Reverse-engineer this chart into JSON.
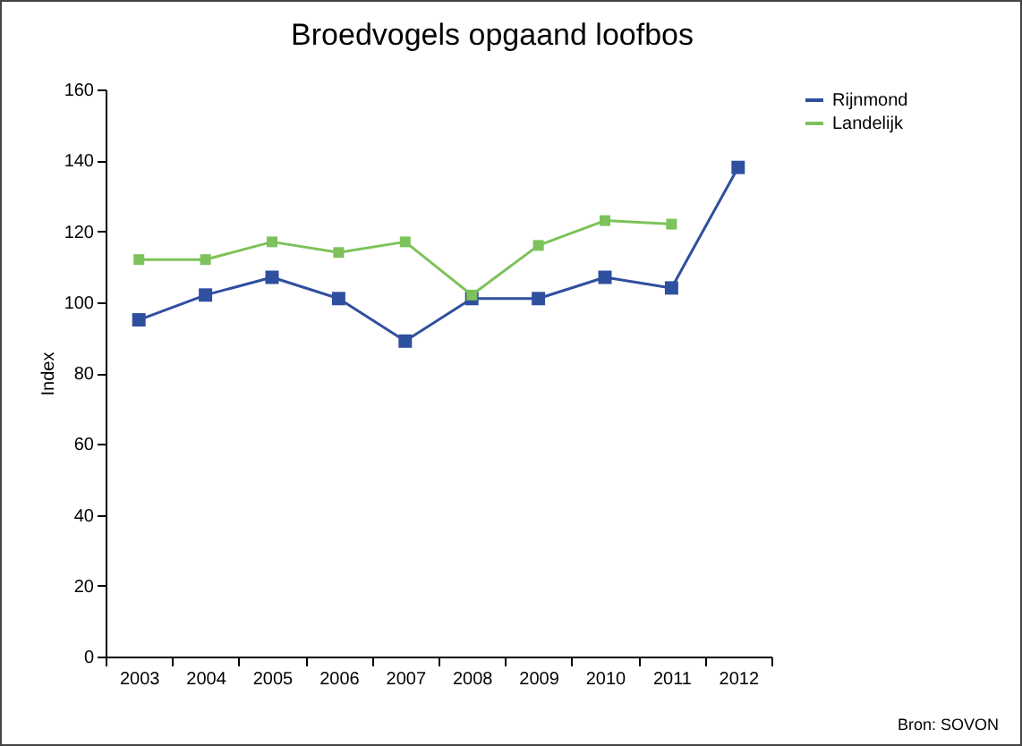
{
  "chart_data": {
    "type": "line",
    "title": "Broedvogels opgaand loofbos",
    "ylabel": "Index",
    "categories": [
      "2003",
      "2004",
      "2005",
      "2006",
      "2007",
      "2008",
      "2009",
      "2010",
      "2011",
      "2012"
    ],
    "series": [
      {
        "name": "Rijnmond",
        "color": "#2f4f9f",
        "values": [
          95,
          102,
          107,
          101,
          89,
          101,
          101,
          107,
          104,
          138
        ]
      },
      {
        "name": "Landelijk",
        "color": "#7dc25a",
        "values": [
          112,
          112,
          117,
          114,
          117,
          102,
          116,
          123,
          122,
          null
        ]
      }
    ],
    "ylim": [
      0,
      160
    ],
    "yticks": [
      0,
      20,
      40,
      60,
      80,
      100,
      120,
      140,
      160
    ],
    "grid": false,
    "legend": "right",
    "marker": "square",
    "line_style": "solid",
    "annotations": [
      "Bron: SOVON"
    ]
  }
}
